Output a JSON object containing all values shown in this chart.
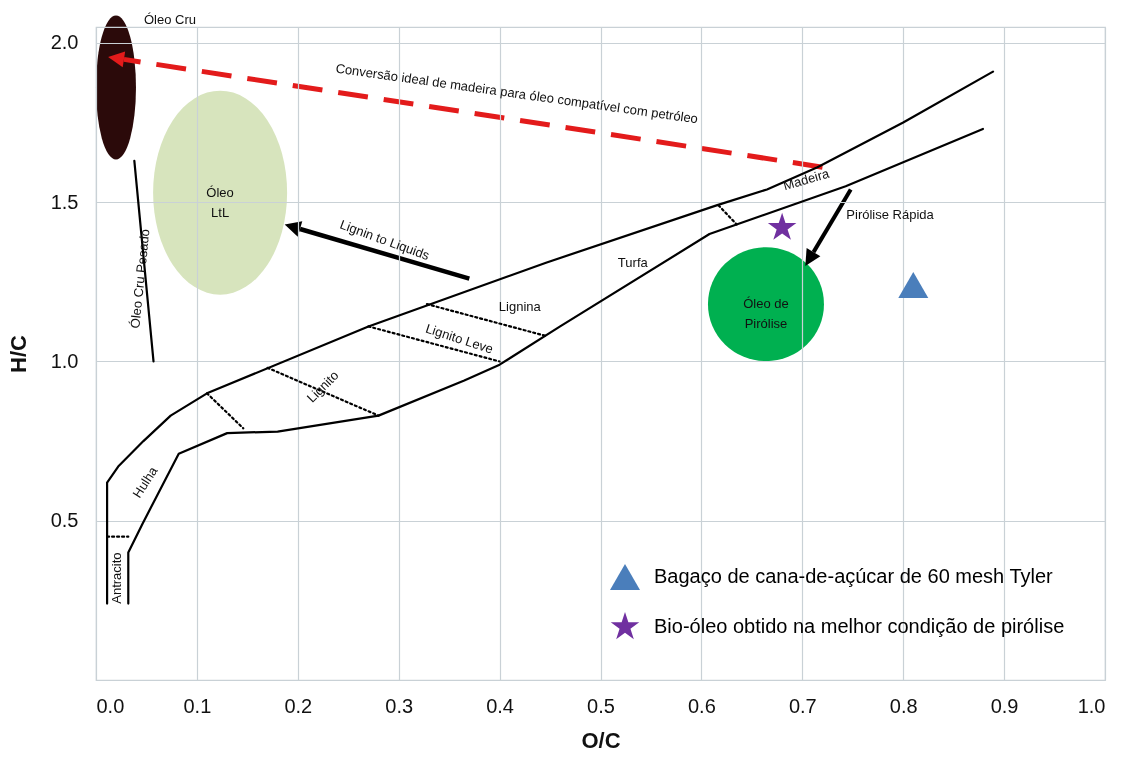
{
  "chart_data": {
    "type": "scatter",
    "xlabel": "O/C",
    "ylabel": "H/C",
    "xlim": [
      0,
      1
    ],
    "ylim": [
      0,
      2.05
    ],
    "xticks": [
      {
        "value": 0,
        "label": "0.0"
      },
      0.1,
      0.2,
      0.3,
      0.4,
      0.5,
      0.6,
      0.7,
      0.8,
      0.9,
      {
        "value": 1,
        "label": "1.0"
      }
    ],
    "yticks": [
      0.5,
      {
        "value": 1,
        "label": "1.0"
      },
      1.5,
      {
        "value": 2,
        "label": "2.0"
      }
    ],
    "grid": true,
    "legend": "bottom right",
    "series": [
      {
        "type": "line",
        "color": "#000000",
        "x": [
          0.011,
          0.011,
          0.022,
          0.047,
          0.074,
          0.11,
          0.27,
          0.446,
          0.615,
          0.665,
          0.715,
          0.8,
          0.889
        ],
        "values": [
          0.24,
          0.62,
          0.67,
          0.75,
          0.83,
          0.9,
          1.11,
          1.31,
          1.49,
          1.54,
          1.61,
          1.75,
          1.91
        ]
      },
      {
        "type": "line",
        "color": "#000000",
        "x": [
          0.032,
          0.032,
          0.046,
          0.082,
          0.13,
          0.18,
          0.28,
          0.365,
          0.4,
          0.46,
          0.608,
          0.743,
          0.879
        ],
        "values": [
          0.24,
          0.4,
          0.49,
          0.71,
          0.775,
          0.78,
          0.83,
          0.94,
          0.99,
          1.11,
          1.4,
          1.55,
          1.73
        ]
      },
      {
        "type": "line",
        "color": "#000000",
        "x": [
          0.038,
          0.057
        ],
        "values": [
          1.63,
          1.0
        ]
      },
      {
        "type": "line",
        "color": "#000000",
        "line_style": "dotted",
        "x": [
          0.011,
          0.032
        ],
        "values": [
          0.45,
          0.45
        ]
      },
      {
        "type": "line",
        "color": "#000000",
        "line_style": "dotted",
        "x": [
          0.11,
          0.146
        ],
        "values": [
          0.9,
          0.79
        ]
      },
      {
        "type": "line",
        "color": "#000000",
        "line_style": "dotted",
        "x": [
          0.17,
          0.28
        ],
        "values": [
          0.98,
          0.83
        ]
      },
      {
        "type": "line",
        "color": "#000000",
        "line_style": "dotted",
        "x": [
          0.27,
          0.4
        ],
        "values": [
          1.11,
          1.0
        ]
      },
      {
        "type": "line",
        "color": "#000000",
        "line_style": "dotted",
        "x": [
          0.328,
          0.446
        ],
        "values": [
          1.18,
          1.08
        ]
      },
      {
        "type": "line",
        "color": "#000000",
        "line_style": "dotted",
        "x": [
          0.617,
          0.635
        ],
        "values": [
          1.49,
          1.43
        ]
      },
      {
        "name": "Bagaço de cana-de-açúcar de 60 mesh Tyler",
        "color": "#4a7ebb",
        "marker": "triangle",
        "x": [
          0.81
        ],
        "values": [
          1.24
        ]
      },
      {
        "name": "Bio-óleo obtido na melhor condição de pirólise",
        "color": "#7030a0",
        "marker": "star",
        "x": [
          0.68
        ],
        "values": [
          1.42
        ]
      }
    ],
    "annotations": [
      "Óleo Cru",
      "Conversão  ideal de madeira para óleo compatível  com petróleo",
      "Óleo\nLtL",
      "Óleo Cru Pesado",
      "Lignin to Liquids",
      "Lignina",
      "Lignito Leve",
      "Lignito",
      "Turfa",
      "Madeira",
      "Pirólise Rápida",
      "Óleo de\nPirólise",
      "Hulha",
      "Antracito"
    ]
  }
}
